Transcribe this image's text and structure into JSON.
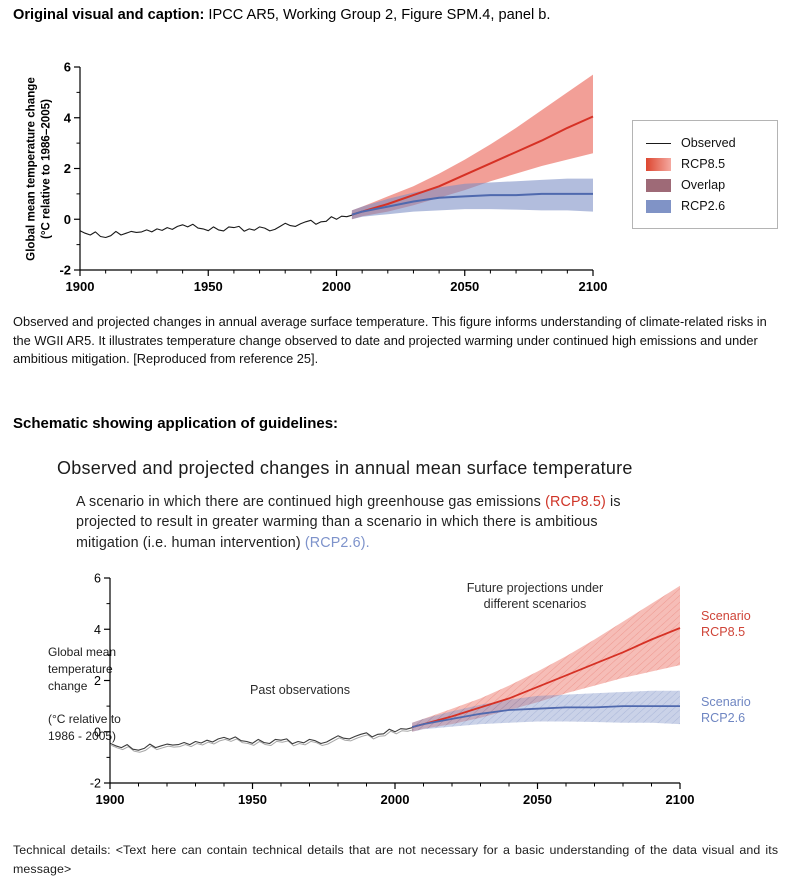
{
  "page": {
    "heading1_bold": "Original visual and caption:",
    "heading1_rest": " IPCC AR5, Working Group 2, Figure SPM.4, panel b.",
    "figure_caption": "Observed and projected changes in annual average surface temperature. This figure informs understanding of climate-related risks in the WGII AR5. It illustrates temperature change observed to date and projected warming under continued high emissions and under ambitious mitigation. [Reproduced from reference 25].",
    "heading2": "Schematic showing application of guidelines:",
    "technical_details": "Technical details: <Text here can contain technical details that are not necessary for a basic understanding of the data visual and its message>"
  },
  "schematic": {
    "title": "Observed and projected changes in annual mean surface temperature",
    "intro_parts": [
      {
        "text": "A scenario in which there are continued high greenhouse gas emissions "
      },
      {
        "text": "(RCP8.5)",
        "color": "#cf3427"
      },
      {
        "text": " is projected to result in greater warming than a scenario in which there is ambitious mitigation (i.e. human intervention) "
      },
      {
        "text": "(RCP2.6).",
        "color": "#7e93cb"
      }
    ]
  },
  "chart_data": [
    {
      "type": "line",
      "ylabel": "Global mean temperature change\n(°C relative to 1986–2005)",
      "xlim": [
        1900,
        2100
      ],
      "ylim": [
        -2,
        6
      ],
      "xticks": [
        1900,
        1950,
        2000,
        2050,
        2100
      ],
      "yticks": [
        -2,
        0,
        2,
        4,
        6
      ],
      "xminor": 10,
      "yminor": 1,
      "legend": [
        {
          "label": "Observed",
          "type": "line",
          "color": "#1a1a1a"
        },
        {
          "label": "RCP8.5",
          "type": "box",
          "color": "#dd4630",
          "color2": "#f4a9a0"
        },
        {
          "label": "Overlap",
          "type": "box",
          "color": "#9e6a77"
        },
        {
          "label": "RCP2.6",
          "type": "box",
          "color": "#8093c6"
        }
      ],
      "observed": {
        "color": "#1a1a1a",
        "x": [
          1900,
          1902,
          1904,
          1906,
          1908,
          1910,
          1912,
          1914,
          1916,
          1918,
          1920,
          1922,
          1924,
          1926,
          1928,
          1930,
          1932,
          1934,
          1936,
          1938,
          1940,
          1942,
          1944,
          1946,
          1948,
          1950,
          1952,
          1954,
          1956,
          1958,
          1960,
          1962,
          1964,
          1966,
          1968,
          1970,
          1972,
          1974,
          1976,
          1978,
          1980,
          1982,
          1984,
          1986,
          1988,
          1990,
          1992,
          1994,
          1996,
          1998,
          2000,
          2002,
          2004,
          2006
        ],
        "y": [
          -0.45,
          -0.55,
          -0.62,
          -0.5,
          -0.68,
          -0.72,
          -0.65,
          -0.48,
          -0.62,
          -0.55,
          -0.48,
          -0.52,
          -0.5,
          -0.42,
          -0.5,
          -0.38,
          -0.44,
          -0.33,
          -0.4,
          -0.28,
          -0.22,
          -0.3,
          -0.2,
          -0.35,
          -0.38,
          -0.45,
          -0.3,
          -0.42,
          -0.46,
          -0.3,
          -0.33,
          -0.28,
          -0.47,
          -0.38,
          -0.43,
          -0.3,
          -0.35,
          -0.46,
          -0.4,
          -0.28,
          -0.16,
          -0.25,
          -0.28,
          -0.18,
          -0.1,
          -0.04,
          -0.2,
          -0.1,
          -0.08,
          0.1,
          0.0,
          0.12,
          0.1,
          0.16
        ]
      },
      "bands": [
        {
          "name": "RCP8.5",
          "fill": "#e8594b",
          "line": "#d63125",
          "x": [
            2006,
            2010,
            2020,
            2030,
            2040,
            2050,
            2060,
            2070,
            2080,
            2090,
            2100
          ],
          "upper": [
            0.35,
            0.5,
            0.9,
            1.3,
            1.8,
            2.35,
            2.95,
            3.6,
            4.3,
            5.0,
            5.7
          ],
          "mean": [
            0.18,
            0.3,
            0.6,
            0.95,
            1.3,
            1.75,
            2.2,
            2.65,
            3.1,
            3.6,
            4.05
          ],
          "lower": [
            0.0,
            0.12,
            0.3,
            0.55,
            0.85,
            1.15,
            1.5,
            1.8,
            2.1,
            2.35,
            2.6
          ]
        },
        {
          "name": "RCP2.6",
          "fill": "#7a8ec5",
          "line": "#4f69ae",
          "x": [
            2006,
            2010,
            2020,
            2030,
            2040,
            2050,
            2060,
            2070,
            2080,
            2090,
            2100
          ],
          "upper": [
            0.35,
            0.5,
            0.8,
            1.05,
            1.25,
            1.4,
            1.45,
            1.5,
            1.55,
            1.6,
            1.6
          ],
          "mean": [
            0.18,
            0.3,
            0.5,
            0.7,
            0.85,
            0.9,
            0.95,
            0.95,
            1.0,
            1.0,
            1.0
          ],
          "lower": [
            0.0,
            0.1,
            0.2,
            0.3,
            0.35,
            0.4,
            0.4,
            0.38,
            0.35,
            0.35,
            0.3
          ]
        }
      ]
    },
    {
      "type": "line",
      "ylabel": "Global mean\ntemperature\nchange\n\n(°C relative to\n1986 - 2005)",
      "xlim": [
        1900,
        2100
      ],
      "ylim": [
        -2,
        6
      ],
      "xticks": [
        1900,
        1950,
        2000,
        2050,
        2100
      ],
      "yticks": [
        -2,
        0,
        2,
        4,
        6
      ],
      "xminor": 10,
      "yminor": 1,
      "series_ref": 0,
      "observed_color": "#3c3c3c",
      "annotations": {
        "future": "Future projections under\ndifferent scenarios",
        "past": "Past observations",
        "rcp85": "Scenario\nRCP8.5",
        "rcp26": "Scenario\nRCP2.6"
      },
      "annotation_colors": {
        "rcp85": "#cf4438",
        "rcp26": "#6f86c2"
      }
    }
  ]
}
